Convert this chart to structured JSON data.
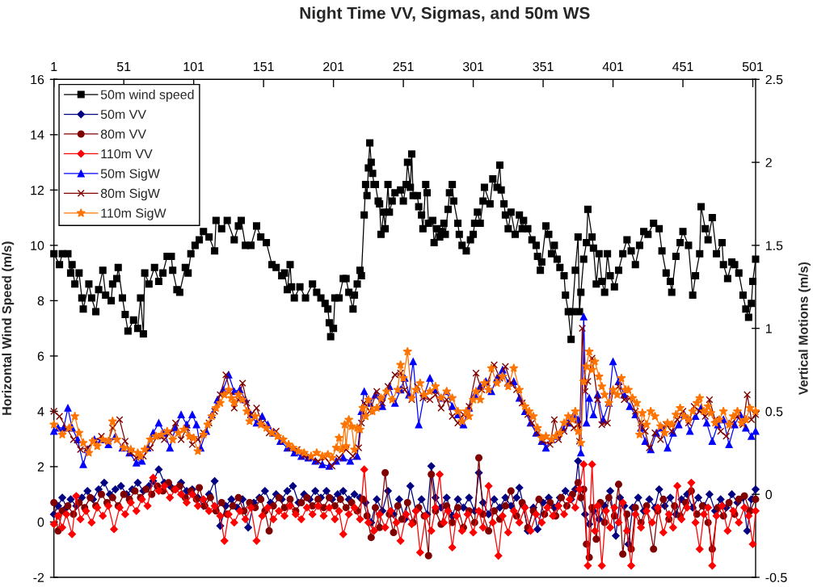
{
  "chart_data": {
    "type": "line",
    "title": "Night Time VV, Sigmas, and 50m WS",
    "ylabel": "Horizontal Wind Speed (m/s)",
    "y2label": "Vertical Motions (m/s)",
    "xlim": [
      1,
      503
    ],
    "xticks": [
      1,
      51,
      101,
      151,
      201,
      251,
      301,
      351,
      401,
      451,
      501
    ],
    "ylim": [
      -2,
      16
    ],
    "yticks": [
      -2,
      0,
      2,
      4,
      6,
      8,
      10,
      12,
      14,
      16
    ],
    "y2lim": [
      -0.5,
      2.5
    ],
    "y2ticks": [
      -0.5,
      0,
      0.5,
      1,
      1.5,
      2,
      2.5
    ],
    "legend": "top left",
    "series": [
      {
        "name": "50m wind speed",
        "color": "#000000",
        "marker": "square",
        "x": [
          1,
          5,
          7,
          11,
          13,
          14,
          16,
          19,
          21,
          22,
          26,
          28,
          31,
          33,
          36,
          38,
          42,
          43,
          46,
          47,
          50,
          52,
          54,
          58,
          61,
          63,
          65,
          66,
          69,
          73,
          76,
          79,
          82,
          85,
          86,
          89,
          91,
          95,
          97,
          99,
          102,
          105,
          108,
          112,
          116,
          117,
          121,
          125,
          130,
          133,
          135,
          138,
          142,
          146,
          149,
          153,
          157,
          160,
          164,
          166,
          168,
          170,
          171,
          173,
          177,
          181,
          186,
          189,
          192,
          195,
          197,
          198,
          199,
          201,
          202,
          205,
          208,
          210,
          212,
          215,
          216,
          218,
          220,
          221,
          223,
          224,
          225,
          226,
          227,
          228,
          229,
          230,
          231,
          233,
          234,
          235,
          237,
          238,
          240,
          241,
          243,
          245,
          249,
          251,
          253,
          254,
          256,
          257,
          258,
          261,
          262,
          264,
          265,
          267,
          268,
          269,
          272,
          273,
          275,
          277,
          278,
          280,
          281,
          283,
          284,
          286,
          287,
          290,
          291,
          293,
          296,
          299,
          301,
          302,
          304,
          306,
          308,
          309,
          313,
          315,
          318,
          320,
          321,
          323,
          324,
          326,
          328,
          331,
          334,
          336,
          337,
          340,
          343,
          346,
          347,
          349,
          350,
          353,
          355,
          357,
          359,
          361,
          363,
          366,
          367,
          369,
          371,
          372,
          374,
          376,
          377,
          378,
          380,
          382,
          383,
          386,
          387,
          389,
          391,
          393,
          395,
          397,
          399,
          402,
          405,
          408,
          411,
          414,
          417,
          420,
          423,
          426,
          430,
          434,
          436,
          439,
          442,
          443,
          446,
          449,
          451,
          455,
          458,
          460,
          463,
          464,
          467,
          469,
          472,
          475,
          479,
          480,
          483,
          486,
          488,
          491,
          494,
          496,
          498,
          500,
          501,
          503
        ],
        "values": [
          9.7,
          9.3,
          9.7,
          9.7,
          9.0,
          9.3,
          8.6,
          9.0,
          8.1,
          7.7,
          8.6,
          8.1,
          7.6,
          8.4,
          9.1,
          8.2,
          8.0,
          8.6,
          8.8,
          9.2,
          8.1,
          7.5,
          6.9,
          7.3,
          7.0,
          8.1,
          6.8,
          9.0,
          8.6,
          9.2,
          8.7,
          9.0,
          9.6,
          9.6,
          9.1,
          8.4,
          8.3,
          9.2,
          9.0,
          9.7,
          10.0,
          10.2,
          10.5,
          10.3,
          9.8,
          10.9,
          10.6,
          10.9,
          10.2,
          10.7,
          10.9,
          10.0,
          10.0,
          10.7,
          10.3,
          10.1,
          9.3,
          9.2,
          8.9,
          9.0,
          8.4,
          9.3,
          8.5,
          8.1,
          8.5,
          8.1,
          8.6,
          8.3,
          8.1,
          7.9,
          7.7,
          7.2,
          6.7,
          7.0,
          8.1,
          8.1,
          8.8,
          8.8,
          8.3,
          7.7,
          8.2,
          8.6,
          9.1,
          8.9,
          11.1,
          12.2,
          11.8,
          12.8,
          13.7,
          13.0,
          12.6,
          12.2,
          12.2,
          11.6,
          11.5,
          10.4,
          11.2,
          10.6,
          12.2,
          11.2,
          11.6,
          11.9,
          12.0,
          11.6,
          12.2,
          13.0,
          12.1,
          13.3,
          11.8,
          11.8,
          11.4,
          11.1,
          10.6,
          12.2,
          11.9,
          10.8,
          10.9,
          10.1,
          10.6,
          10.3,
          10.5,
          10.8,
          10.4,
          11.3,
          11.9,
          12.2,
          11.6,
          10.8,
          10.4,
          10.0,
          9.8,
          10.2,
          10.4,
          10.8,
          11.2,
          10.8,
          11.6,
          12.1,
          11.5,
          12.4,
          12.1,
          12.9,
          12.0,
          11.5,
          11.1,
          10.6,
          11.2,
          10.4,
          11.1,
          10.6,
          10.9,
          10.6,
          10.2,
          10.0,
          9.6,
          9.1,
          9.4,
          10.7,
          10.4,
          9.7,
          10.0,
          9.5,
          9.2,
          8.9,
          8.2,
          7.6,
          6.6,
          7.6,
          9.1,
          10.3,
          7.6,
          8.3,
          9.5,
          10.1,
          11.3,
          10.3,
          9.9,
          8.6,
          9.7,
          8.7,
          8.3,
          9.7,
          8.9,
          8.5,
          9.1,
          9.7,
          10.2,
          9.8,
          9.3,
          10.0,
          10.5,
          10.4,
          10.8,
          10.6,
          9.8,
          9.0,
          8.7,
          8.3,
          9.6,
          10.1,
          10.5,
          10.0,
          8.2,
          8.9,
          9.7,
          11.4,
          10.6,
          10.2,
          11.0,
          9.7,
          10.1,
          9.3,
          8.8,
          9.4,
          9.3,
          9.0,
          8.2,
          7.7,
          7.4,
          7.9,
          8.7,
          9.5
        ]
      },
      {
        "name": "50m VV",
        "color": "#000080",
        "marker": "diamond",
        "axis": "y2",
        "x": [
          1,
          4,
          7,
          10,
          13,
          17,
          21,
          25,
          29,
          33,
          37,
          41,
          45,
          49,
          53,
          57,
          61,
          65,
          69,
          72,
          76,
          80,
          84,
          88,
          92,
          96,
          100,
          104,
          108,
          112,
          116,
          120,
          124,
          128,
          132,
          136,
          140,
          144,
          148,
          152,
          156,
          160,
          164,
          168,
          172,
          176,
          180,
          184,
          188,
          192,
          196,
          200,
          204,
          208,
          212,
          216,
          220,
          224,
          228,
          232,
          236,
          240,
          244,
          248,
          252,
          256,
          260,
          264,
          268,
          271,
          274,
          278,
          282,
          286,
          290,
          294,
          298,
          302,
          305,
          308,
          312,
          316,
          320,
          324,
          328,
          332,
          334,
          337,
          340,
          344,
          347,
          351,
          355,
          359,
          363,
          367,
          371,
          374,
          376,
          378,
          381,
          384,
          387,
          391,
          395,
          399,
          403,
          406,
          409,
          412,
          415,
          419,
          423,
          427,
          431,
          434,
          438,
          442,
          446,
          450,
          454,
          458,
          462,
          466,
          470,
          474,
          478,
          482,
          486,
          490,
          494,
          497,
          500,
          503
        ],
        "values": [
          -0.12,
          -0.07,
          -0.02,
          -0.08,
          -0.03,
          -0.07,
          -0.02,
          0.02,
          -0.03,
          0.03,
          0.07,
          0,
          0.03,
          0.05,
          0,
          0.03,
          0.07,
          0.02,
          0.05,
          0.08,
          0.15,
          0.07,
          0.05,
          0.03,
          0.07,
          0.02,
          0.03,
          -0.02,
          -0.07,
          0,
          0.08,
          -0.19,
          -0.07,
          -0.03,
          -0.08,
          -0.03,
          -0.2,
          -0.05,
          -0.02,
          0.02,
          -0.05,
          0,
          -0.03,
          0.02,
          0.05,
          -0.05,
          0,
          -0.03,
          0.02,
          -0.02,
          0.02,
          -0.03,
          0,
          0.02,
          -0.03,
          0,
          -0.02,
          -0.05,
          -0.17,
          -0.03,
          -0.1,
          0.02,
          -0.12,
          -0.03,
          -0.15,
          0.05,
          -0.1,
          -0.03,
          -0.12,
          0.17,
          -0.02,
          -0.08,
          -0.02,
          -0.13,
          -0.03,
          -0.08,
          -0.02,
          -0.1,
          0.13,
          -0.05,
          -0.12,
          -0.03,
          -0.08,
          -0.02,
          -0.07,
          -0.02,
          0.04,
          -0.07,
          -0.22,
          -0.08,
          -0.21,
          -0.05,
          -0.02,
          -0.08,
          -0.02,
          0.02,
          -0.03,
          0.03,
          0.2,
          -0.02,
          -0.12,
          -0.18,
          -0.1,
          -0.15,
          -0.07,
          0.02,
          -0.25,
          -0.02,
          -0.07,
          -0.3,
          -0.08,
          -0.02,
          -0.1,
          -0.03,
          -0.08,
          0.03,
          -0.07,
          -0.02,
          -0.12,
          -0.03,
          0,
          -0.08,
          -0.02,
          -0.07,
          0,
          -0.1,
          -0.03,
          -0.08,
          0,
          -0.05,
          -0.02,
          -0.22,
          -0.03,
          0.03
        ]
      },
      {
        "name": "80m VV",
        "color": "#800000",
        "marker": "circle",
        "axis": "y2",
        "x": [
          1,
          4,
          7,
          11,
          15,
          19,
          23,
          27,
          31,
          35,
          39,
          43,
          47,
          51,
          55,
          59,
          63,
          67,
          71,
          75,
          79,
          83,
          87,
          91,
          95,
          99,
          103,
          105,
          109,
          113,
          117,
          121,
          125,
          129,
          133,
          137,
          141,
          145,
          149,
          152,
          155,
          158,
          162,
          166,
          170,
          174,
          178,
          182,
          186,
          190,
          194,
          198,
          202,
          206,
          210,
          214,
          218,
          222,
          225,
          228,
          231,
          234,
          238,
          241,
          244,
          247,
          250,
          254,
          258,
          262,
          266,
          269,
          271,
          274,
          278,
          282,
          286,
          290,
          294,
          298,
          302,
          305,
          308,
          312,
          316,
          320,
          324,
          328,
          332,
          336,
          340,
          344,
          348,
          352,
          356,
          360,
          364,
          368,
          372,
          376,
          378,
          380,
          382,
          384,
          386,
          389,
          392,
          395,
          398,
          402,
          405,
          408,
          411,
          414,
          417,
          421,
          425,
          430,
          433,
          437,
          441,
          445,
          449,
          453,
          457,
          461,
          465,
          469,
          472,
          476,
          480,
          484,
          488,
          491,
          495,
          499,
          503
        ],
        "values": [
          -0.05,
          -0.22,
          -0.1,
          -0.07,
          -0.12,
          -0.05,
          -0.08,
          -0.02,
          -0.07,
          0,
          -0.05,
          -0.02,
          -0.07,
          0,
          -0.03,
          0.02,
          -0.02,
          0.03,
          0,
          0.05,
          0.02,
          0.07,
          0.03,
          0.05,
          -0.02,
          0.02,
          -0.03,
          0.04,
          -0.07,
          -0.02,
          -0.1,
          -0.05,
          -0.12,
          -0.07,
          -0.02,
          -0.1,
          -0.05,
          -0.08,
          -0.03,
          -0.1,
          -0.22,
          -0.07,
          -0.02,
          -0.08,
          -0.03,
          -0.1,
          -0.05,
          -0.02,
          -0.07,
          -0.03,
          -0.08,
          -0.02,
          -0.07,
          -0.03,
          -0.08,
          -0.05,
          -0.1,
          -0.03,
          -0.13,
          -0.26,
          -0.08,
          -0.2,
          0.13,
          -0.12,
          -0.23,
          -0.07,
          -0.15,
          -0.05,
          -0.17,
          -0.08,
          -0.13,
          -0.37,
          0.12,
          -0.1,
          -0.18,
          -0.07,
          -0.17,
          -0.08,
          -0.2,
          -0.1,
          -0.17,
          0.22,
          -0.12,
          -0.22,
          -0.1,
          -0.15,
          -0.07,
          0.02,
          -0.13,
          -0.05,
          -0.2,
          -0.1,
          -0.03,
          -0.12,
          -0.05,
          -0.13,
          -0.02,
          -0.07,
          0,
          0.07,
          -0.02,
          0.03,
          -0.3,
          -0.38,
          -0.08,
          -0.27,
          -0.05,
          -0.17,
          -0.02,
          -0.13,
          0.06,
          -0.36,
          -0.12,
          -0.33,
          -0.08,
          -0.17,
          -0.07,
          -0.33,
          -0.1,
          -0.03,
          -0.15,
          -0.07,
          -0.13,
          -0.05,
          0.02,
          -0.12,
          -0.07,
          -0.17,
          -0.33,
          -0.08,
          -0.13,
          -0.05,
          -0.12,
          -0.03,
          -0.01,
          -0.1,
          -0.03
        ]
      },
      {
        "name": "110m VV",
        "color": "#ff0000",
        "marker": "diamond",
        "axis": "y2",
        "x": [
          1,
          4,
          7,
          10,
          14,
          17,
          20,
          24,
          28,
          32,
          36,
          40,
          44,
          48,
          52,
          56,
          60,
          64,
          68,
          72,
          76,
          80,
          84,
          88,
          92,
          96,
          100,
          104,
          108,
          112,
          116,
          120,
          123,
          126,
          130,
          134,
          138,
          142,
          146,
          150,
          154,
          158,
          162,
          166,
          170,
          174,
          178,
          182,
          186,
          190,
          194,
          198,
          202,
          205,
          208,
          212,
          216,
          220,
          223,
          226,
          230,
          234,
          238,
          242,
          246,
          249,
          253,
          257,
          260,
          263,
          267,
          271,
          274,
          277,
          280,
          283,
          286,
          289,
          293,
          297,
          301,
          305,
          308,
          312,
          315,
          319,
          322,
          326,
          330,
          334,
          338,
          342,
          346,
          350,
          354,
          358,
          362,
          366,
          370,
          374,
          377,
          380,
          383,
          386,
          388,
          390,
          393,
          396,
          399,
          402,
          405,
          408,
          411,
          414,
          417,
          421,
          425,
          429,
          433,
          437,
          441,
          444,
          447,
          450,
          454,
          457,
          460,
          463,
          466,
          469,
          472,
          475,
          479,
          483,
          487,
          491,
          495,
          498,
          501,
          503
        ],
        "values": [
          -0.18,
          -0.13,
          -0.2,
          -0.12,
          -0.24,
          -0.01,
          -0.15,
          -0.1,
          -0.17,
          -0.08,
          -0.13,
          -0.07,
          -0.21,
          -0.08,
          -0.12,
          -0.05,
          -0.1,
          -0.03,
          -0.07,
          0.1,
          0.02,
          0.05,
          -0.02,
          0.03,
          0,
          -0.05,
          0,
          -0.07,
          -0.03,
          -0.1,
          -0.07,
          -0.13,
          -0.28,
          -0.12,
          -0.17,
          -0.1,
          -0.15,
          -0.08,
          -0.28,
          -0.13,
          -0.08,
          -0.15,
          -0.1,
          -0.13,
          -0.07,
          -0.12,
          -0.15,
          -0.08,
          -0.12,
          -0.07,
          -0.13,
          -0.08,
          -0.15,
          -0.1,
          -0.24,
          -0.12,
          -0.08,
          -0.15,
          0.15,
          -0.17,
          -0.22,
          -0.12,
          -0.2,
          -0.1,
          -0.17,
          -0.28,
          -0.12,
          -0.18,
          -0.1,
          -0.35,
          -0.13,
          -0.22,
          -0.08,
          0.12,
          -0.17,
          -0.1,
          -0.32,
          -0.13,
          -0.22,
          -0.12,
          -0.23,
          -0.1,
          -0.2,
          0.05,
          -0.17,
          -0.37,
          -0.13,
          -0.23,
          -0.1,
          -0.17,
          -0.08,
          -0.22,
          -0.12,
          -0.17,
          -0.08,
          -0.13,
          -0.07,
          -0.12,
          -0.03,
          -0.08,
          0.03,
          0.18,
          -0.43,
          0.18,
          -0.22,
          -0.07,
          -0.43,
          -0.1,
          -0.2,
          -0.08,
          -0.17,
          -0.05,
          -0.22,
          -0.43,
          -0.12,
          -0.2,
          -0.1,
          -0.17,
          -0.08,
          -0.23,
          -0.12,
          -0.2,
          0.05,
          -0.15,
          -0.08,
          0.07,
          -0.17,
          -0.33,
          -0.12,
          -0.08,
          -0.43,
          -0.13,
          -0.07,
          -0.22,
          -0.1,
          -0.17,
          -0.08,
          -0.13,
          -0.3,
          -0.1
        ]
      },
      {
        "name": "50m SigW",
        "color": "#0000ff",
        "marker": "triangle",
        "axis": "y2",
        "x": [
          1,
          4,
          8,
          11,
          14,
          18,
          22,
          25,
          30,
          35,
          40,
          45,
          50,
          55,
          60,
          64,
          68,
          72,
          76,
          80,
          84,
          88,
          92,
          96,
          100,
          103,
          106,
          110,
          114,
          118,
          122,
          126,
          130,
          134,
          138,
          142,
          146,
          150,
          154,
          158,
          163,
          168,
          173,
          178,
          183,
          188,
          193,
          198,
          203,
          208,
          213,
          218,
          221,
          223,
          227,
          231,
          236,
          241,
          245,
          249,
          252,
          255,
          258,
          262,
          266,
          270,
          274,
          278,
          282,
          286,
          290,
          294,
          298,
          302,
          306,
          310,
          314,
          318,
          322,
          326,
          330,
          334,
          338,
          342,
          346,
          350,
          353,
          357,
          361,
          365,
          369,
          373,
          376,
          378,
          380,
          382,
          384,
          387,
          390,
          394,
          398,
          401,
          405,
          409,
          413,
          417,
          421,
          424,
          428,
          432,
          436,
          440,
          444,
          448,
          452,
          456,
          460,
          464,
          468,
          472,
          476,
          480,
          484,
          488,
          492,
          496,
          500,
          503
        ],
        "values": [
          0.38,
          0.4,
          0.4,
          0.52,
          0.4,
          0.33,
          0.18,
          0.27,
          0.33,
          0.33,
          0.3,
          0.35,
          0.28,
          0.25,
          0.19,
          0.2,
          0.28,
          0.37,
          0.43,
          0.37,
          0.28,
          0.4,
          0.48,
          0.42,
          0.48,
          0.42,
          0.28,
          0.38,
          0.48,
          0.57,
          0.63,
          0.72,
          0.62,
          0.63,
          0.57,
          0.48,
          0.43,
          0.47,
          0.42,
          0.37,
          0.32,
          0.28,
          0.25,
          0.23,
          0.22,
          0.2,
          0.18,
          0.17,
          0.2,
          0.22,
          0.2,
          0.23,
          0.5,
          0.62,
          0.55,
          0.6,
          0.53,
          0.65,
          0.55,
          0.63,
          0.7,
          0.6,
          0.8,
          0.42,
          0.6,
          0.7,
          0.63,
          0.58,
          0.62,
          0.53,
          0.48,
          0.42,
          0.52,
          0.6,
          0.65,
          0.68,
          0.62,
          0.7,
          0.75,
          0.67,
          0.68,
          0.58,
          0.5,
          0.43,
          0.37,
          0.32,
          0.28,
          0.33,
          0.35,
          0.4,
          0.43,
          0.48,
          0.45,
          0.25,
          1.07,
          0.43,
          0.58,
          0.48,
          0.6,
          0.45,
          0.55,
          0.8,
          0.68,
          0.6,
          0.53,
          0.48,
          0.4,
          0.32,
          0.27,
          0.37,
          0.4,
          0.28,
          0.37,
          0.42,
          0.48,
          0.38,
          0.47,
          0.52,
          0.43,
          0.32,
          0.42,
          0.45,
          0.3,
          0.42,
          0.48,
          0.4,
          0.35,
          0.38
        ]
      },
      {
        "name": "80m SigW",
        "color": "#800000",
        "marker": "cross",
        "axis": "y2",
        "x": [
          1,
          5,
          10,
          15,
          20,
          25,
          30,
          35,
          40,
          43,
          48,
          52,
          56,
          60,
          65,
          70,
          75,
          80,
          84,
          88,
          92,
          96,
          100,
          104,
          108,
          112,
          116,
          120,
          124,
          127,
          130,
          133,
          136,
          139,
          142,
          146,
          150,
          155,
          160,
          165,
          170,
          175,
          180,
          185,
          190,
          195,
          200,
          205,
          210,
          215,
          219,
          221,
          223,
          227,
          232,
          236,
          240,
          245,
          249,
          252,
          257,
          261,
          265,
          270,
          274,
          278,
          282,
          286,
          290,
          294,
          298,
          303,
          307,
          311,
          316,
          320,
          324,
          328,
          332,
          336,
          340,
          343,
          347,
          351,
          356,
          359,
          362,
          366,
          370,
          373,
          376,
          377,
          379,
          381,
          383,
          386,
          390,
          393,
          397,
          401,
          405,
          409,
          413,
          417,
          421,
          424,
          427,
          431,
          435,
          439,
          443,
          447,
          451,
          455,
          459,
          463,
          467,
          470,
          474,
          478,
          482,
          486,
          490,
          494,
          497,
          500,
          503
        ],
        "values": [
          0.5,
          0.47,
          0.4,
          0.33,
          0.27,
          0.28,
          0.32,
          0.35,
          0.32,
          0.4,
          0.45,
          0.32,
          0.25,
          0.22,
          0.23,
          0.28,
          0.35,
          0.33,
          0.37,
          0.43,
          0.33,
          0.4,
          0.3,
          0.33,
          0.37,
          0.43,
          0.5,
          0.6,
          0.72,
          0.62,
          0.52,
          0.57,
          0.67,
          0.55,
          0.48,
          0.52,
          0.43,
          0.37,
          0.38,
          0.32,
          0.28,
          0.27,
          0.23,
          0.22,
          0.2,
          0.22,
          0.17,
          0.22,
          0.27,
          0.23,
          0.28,
          0.43,
          0.55,
          0.5,
          0.62,
          0.55,
          0.65,
          0.72,
          0.73,
          0.63,
          0.57,
          0.65,
          0.58,
          0.57,
          0.6,
          0.52,
          0.57,
          0.47,
          0.43,
          0.48,
          0.53,
          0.73,
          0.63,
          0.67,
          0.78,
          0.7,
          0.77,
          0.67,
          0.63,
          0.55,
          0.48,
          0.43,
          0.37,
          0.32,
          0.3,
          0.45,
          0.33,
          0.38,
          0.43,
          0.4,
          0.42,
          0.32,
          1.0,
          0.62,
          0.68,
          0.82,
          0.57,
          0.42,
          0.43,
          0.62,
          0.65,
          0.57,
          0.58,
          0.5,
          0.43,
          0.38,
          0.28,
          0.37,
          0.33,
          0.42,
          0.38,
          0.45,
          0.5,
          0.43,
          0.53,
          0.5,
          0.47,
          0.57,
          0.45,
          0.38,
          0.35,
          0.43,
          0.47,
          0.42,
          0.6,
          0.45,
          0.48
        ]
      },
      {
        "name": "110m SigW",
        "color": "#ff7400",
        "marker": "star",
        "axis": "y2",
        "x": [
          1,
          7,
          12,
          16,
          19,
          22,
          26,
          29,
          32,
          36,
          40,
          43,
          46,
          51,
          56,
          61,
          63,
          66,
          70,
          74,
          78,
          82,
          86,
          90,
          94,
          98,
          101,
          104,
          108,
          111,
          114,
          117,
          120,
          123,
          126,
          128,
          130,
          133,
          136,
          139,
          141,
          145,
          149,
          153,
          157,
          161,
          165,
          169,
          172,
          176,
          180,
          185,
          189,
          193,
          197,
          200,
          203,
          205,
          207,
          209,
          210,
          212,
          214,
          216,
          218,
          220,
          222,
          224,
          226,
          229,
          232,
          235,
          239,
          243,
          247,
          249,
          251,
          254,
          257,
          260,
          263,
          266,
          270,
          274,
          278,
          282,
          286,
          290,
          293,
          296,
          298,
          301,
          303,
          306,
          309,
          312,
          314,
          318,
          322,
          326,
          330,
          334,
          338,
          341,
          344,
          347,
          350,
          353,
          357,
          360,
          363,
          366,
          369,
          372,
          374,
          376,
          378,
          380,
          382,
          384,
          386,
          388,
          391,
          393,
          395,
          398,
          401,
          404,
          407,
          410,
          412,
          415,
          418,
          420,
          422,
          425,
          428,
          431,
          435,
          438,
          440,
          443,
          446,
          449,
          452,
          455,
          458,
          461,
          463,
          466,
          469,
          471,
          474,
          477,
          480,
          484,
          487,
          490,
          493,
          496,
          499,
          503
        ],
        "values": [
          0.42,
          0.36,
          0.4,
          0.47,
          0.37,
          0.31,
          0.25,
          0.32,
          0.29,
          0.33,
          0.32,
          0.44,
          0.33,
          0.28,
          0.27,
          0.25,
          0.23,
          0.27,
          0.33,
          0.35,
          0.36,
          0.38,
          0.33,
          0.37,
          0.39,
          0.35,
          0.34,
          0.26,
          0.36,
          0.42,
          0.47,
          0.52,
          0.55,
          0.6,
          0.63,
          0.58,
          0.55,
          0.6,
          0.57,
          0.5,
          0.44,
          0.47,
          0.42,
          0.4,
          0.37,
          0.35,
          0.33,
          0.3,
          0.28,
          0.26,
          0.25,
          0.23,
          0.25,
          0.23,
          0.24,
          0.22,
          0.28,
          0.34,
          0.27,
          0.42,
          0.29,
          0.45,
          0.41,
          0.27,
          0.4,
          0.39,
          0.52,
          0.47,
          0.57,
          0.5,
          0.52,
          0.58,
          0.62,
          0.57,
          0.63,
          0.78,
          0.7,
          0.86,
          0.58,
          0.63,
          0.67,
          0.6,
          0.62,
          0.65,
          0.58,
          0.62,
          0.58,
          0.5,
          0.44,
          0.5,
          0.47,
          0.57,
          0.62,
          0.57,
          0.67,
          0.63,
          0.76,
          0.67,
          0.71,
          0.65,
          0.76,
          0.63,
          0.53,
          0.5,
          0.47,
          0.4,
          0.34,
          0.35,
          0.33,
          0.35,
          0.37,
          0.43,
          0.47,
          0.45,
          0.5,
          0.38,
          0.31,
          0.68,
          0.77,
          0.86,
          0.75,
          0.8,
          0.71,
          0.65,
          0.6,
          0.55,
          0.63,
          0.6,
          0.7,
          0.63,
          0.63,
          0.58,
          0.55,
          0.36,
          0.49,
          0.42,
          0.5,
          0.47,
          0.41,
          0.37,
          0.43,
          0.42,
          0.48,
          0.52,
          0.47,
          0.45,
          0.5,
          0.55,
          0.58,
          0.5,
          0.53,
          0.49,
          0.43,
          0.45,
          0.5,
          0.42,
          0.47,
          0.5,
          0.43,
          0.45,
          0.52,
          0.5
        ]
      }
    ]
  }
}
